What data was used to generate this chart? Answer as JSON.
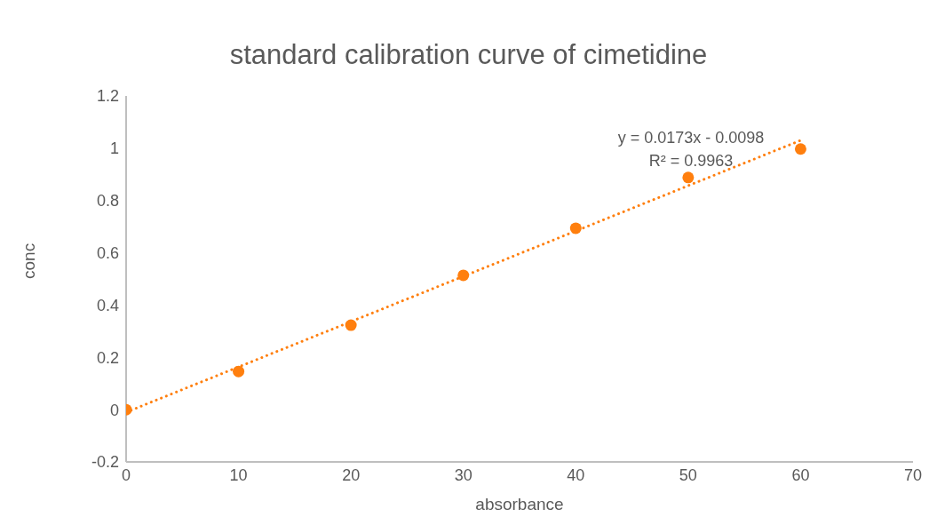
{
  "chart_data": {
    "type": "scatter",
    "title": "standard calibration curve of cimetidine",
    "xlabel": "absorbance",
    "ylabel": "conc",
    "annotations": [
      "y = 0.0173x - 0.0098",
      "R² = 0.9963"
    ],
    "series": [
      {
        "color": "#ff7f0e",
        "x": [
          0,
          10,
          20,
          30,
          40,
          50,
          60
        ],
        "values": [
          0,
          0.146,
          0.323,
          0.514,
          0.694,
          0.888,
          0.997
        ],
        "marker": "circle"
      },
      {
        "type": "line",
        "color": "#ff7f0e",
        "x": [
          0,
          60
        ],
        "values": [
          -0.01,
          1.03
        ],
        "line_style": "dotted",
        "marker": "none"
      }
    ],
    "xlim": [
      0,
      70
    ],
    "xticks": [
      0,
      10,
      20,
      30,
      40,
      50,
      60,
      70
    ],
    "ylim": [
      -0.2,
      1.2
    ],
    "yticks": [
      -0.2,
      0,
      0.2,
      0.4,
      0.6,
      0.8,
      1,
      1.2
    ],
    "grid": false
  }
}
